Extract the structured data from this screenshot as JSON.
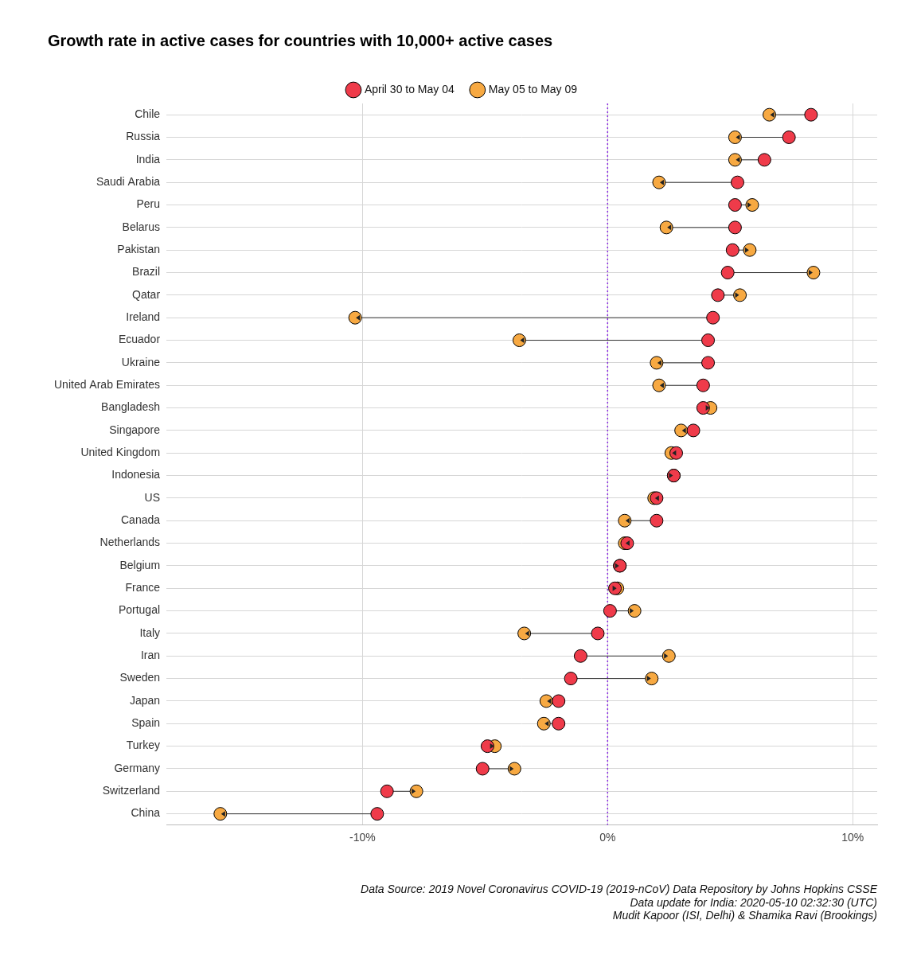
{
  "chart_data": {
    "type": "dumbbell",
    "orientation": "horizontal",
    "title": "Growth rate in active cases for countries with 10,000+ active cases",
    "categories": [
      "Chile",
      "Russia",
      "India",
      "Saudi Arabia",
      "Peru",
      "Belarus",
      "Pakistan",
      "Brazil",
      "Qatar",
      "Ireland",
      "Ecuador",
      "Ukraine",
      "United Arab Emirates",
      "Bangladesh",
      "Singapore",
      "United Kingdom",
      "Indonesia",
      "US",
      "Canada",
      "Netherlands",
      "Belgium",
      "France",
      "Portugal",
      "Italy",
      "Iran",
      "Sweden",
      "Japan",
      "Spain",
      "Turkey",
      "Germany",
      "Switzerland",
      "China"
    ],
    "series": [
      {
        "name": "April 30 to May 04",
        "color": "#ef3b4a",
        "values": [
          8.3,
          7.4,
          6.4,
          5.3,
          5.2,
          5.2,
          5.1,
          4.9,
          4.5,
          4.3,
          4.1,
          4.1,
          3.9,
          3.9,
          3.5,
          2.8,
          2.7,
          2.0,
          2.0,
          0.8,
          0.5,
          0.3,
          0.1,
          -0.4,
          -1.1,
          -1.5,
          -2.0,
          -2.0,
          -4.9,
          -5.1,
          -9.0,
          -9.4
        ]
      },
      {
        "name": "May 05 to May 09",
        "color": "#f7a942",
        "values": [
          6.6,
          5.2,
          5.2,
          2.1,
          5.9,
          2.4,
          5.8,
          8.4,
          5.4,
          -10.3,
          -3.6,
          2.0,
          2.1,
          4.2,
          3.0,
          2.6,
          2.7,
          1.9,
          0.7,
          0.7,
          0.5,
          0.4,
          1.1,
          -3.4,
          2.5,
          1.8,
          -2.5,
          -2.6,
          -4.6,
          -3.8,
          -7.8,
          -15.8
        ]
      }
    ],
    "xlim": [
      -18,
      11
    ],
    "xticks": [
      {
        "value": -10,
        "label": "-10%"
      },
      {
        "value": 0,
        "label": "0%"
      },
      {
        "value": 10,
        "label": "10%"
      }
    ],
    "grid": true,
    "legend": "top",
    "marker": "circle",
    "caption": [
      "Data Source: 2019 Novel Coronavirus COVID-19 (2019-nCoV) Data Repository by Johns Hopkins CSSE",
      "Data update for India: 2020-05-10 02:32:30 (UTC)",
      "Mudit Kapoor (ISI, Delhi) & Shamika Ravi (Brookings)"
    ]
  }
}
